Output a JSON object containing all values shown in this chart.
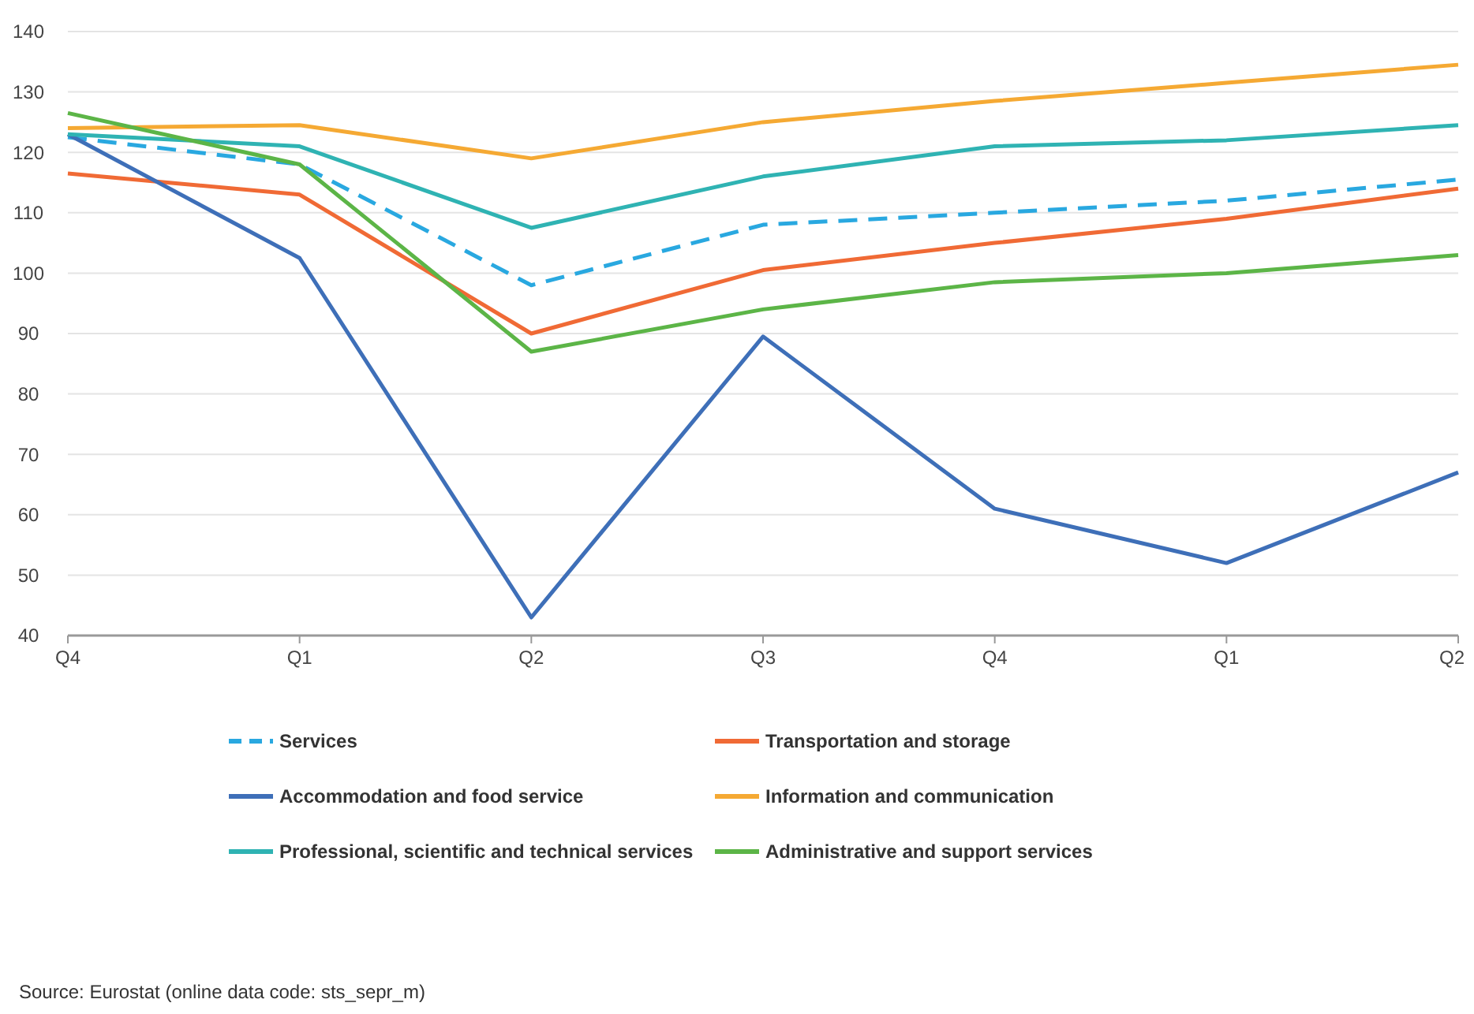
{
  "chart_data": {
    "type": "line",
    "categories": [
      "Q4",
      "Q1",
      "Q2",
      "Q3",
      "Q4",
      "Q1",
      "Q2"
    ],
    "series": [
      {
        "name": "Services",
        "color": "#29a8e0",
        "line_style": "dashed",
        "values": [
          122.5,
          118,
          98,
          108,
          110,
          112,
          115.5
        ]
      },
      {
        "name": "Transportation and storage",
        "color": "#f06a35",
        "values": [
          116.5,
          113,
          90,
          100.5,
          105,
          109,
          114
        ]
      },
      {
        "name": "Accommodation and food service",
        "color": "#3e6fb8",
        "values": [
          123,
          102.5,
          43,
          89.5,
          61,
          52,
          67
        ]
      },
      {
        "name": "Information and communication",
        "color": "#f5a933",
        "values": [
          124,
          124.5,
          119,
          125,
          128.5,
          131.5,
          134.5
        ]
      },
      {
        "name": "Professional, scientific and technical services",
        "color": "#2fb3b3",
        "values": [
          123,
          121,
          107.5,
          116,
          121,
          122,
          124.5
        ]
      },
      {
        "name": "Administrative and support services",
        "color": "#5cb547",
        "values": [
          126.5,
          118,
          87,
          94,
          98.5,
          100,
          103
        ]
      }
    ],
    "ylim": [
      40,
      140
    ],
    "yticks": [
      40,
      50,
      60,
      70,
      80,
      90,
      100,
      110,
      120,
      130,
      140
    ],
    "grid": "y",
    "legend": "bottom",
    "line_style": "solid",
    "marker": "none",
    "annotations": [
      "Source: Eurostat (online data code: sts_sepr_m)"
    ]
  }
}
